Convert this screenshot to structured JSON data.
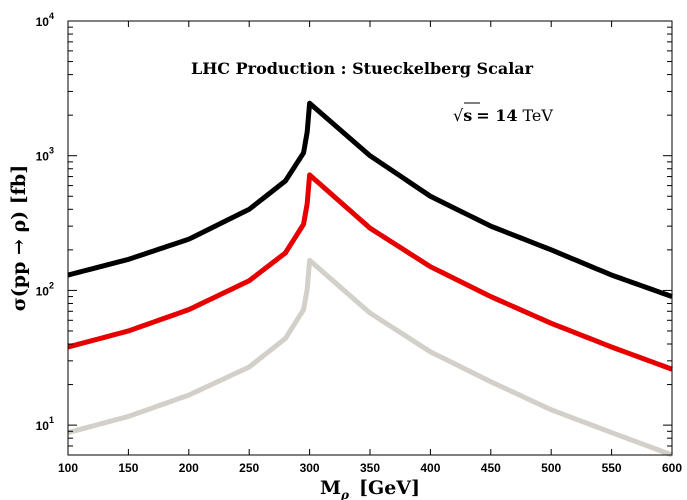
{
  "chart_data": {
    "type": "line",
    "title": "LHC Production :  Stueckelberg Scalar",
    "annotation": {
      "sqrt": "√",
      "s": "s",
      "equals": "= 14",
      "unit": "TeV"
    },
    "xlabel": {
      "main": "M",
      "sub": "ρ",
      "unit": "[GeV]"
    },
    "ylabel": "σ(pp → ρ)  [fb]",
    "xlim": [
      100,
      600
    ],
    "ylim": [
      6,
      10000
    ],
    "yscale": "log",
    "grid": false,
    "x_ticks": [
      100,
      150,
      200,
      250,
      300,
      350,
      400,
      450,
      500,
      550,
      600
    ],
    "y_ticks": [
      {
        "value": 10,
        "base": "10",
        "exp": "1"
      },
      {
        "value": 100,
        "base": "10",
        "exp": "2"
      },
      {
        "value": 1000,
        "base": "10",
        "exp": "3"
      },
      {
        "value": 10000,
        "base": "10",
        "exp": "4"
      }
    ],
    "x": [
      100,
      150,
      200,
      250,
      280,
      295,
      298,
      300,
      350,
      400,
      450,
      500,
      550,
      600
    ],
    "series": [
      {
        "color": "#000000",
        "values": [
          130,
          170,
          240,
          400,
          650,
          1050,
          1500,
          2450,
          1000,
          500,
          300,
          200,
          130,
          90
        ]
      },
      {
        "color": "#e60000",
        "values": [
          38,
          50,
          72,
          118,
          190,
          310,
          440,
          720,
          290,
          150,
          90,
          57,
          38,
          26
        ]
      },
      {
        "color": "#d3d0ca",
        "values": [
          8.8,
          11.6,
          16.7,
          27,
          44,
          72,
          102,
          167,
          68,
          35,
          21,
          13,
          8.8,
          6
        ]
      }
    ]
  }
}
